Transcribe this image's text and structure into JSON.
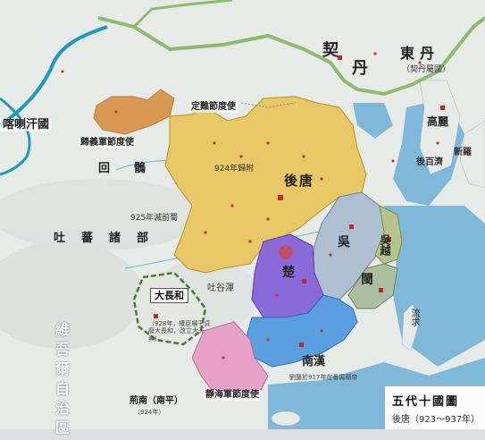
{
  "map": {
    "regions": {
      "later_tang": "後唐",
      "wu": "吳",
      "wuyue": "吳越",
      "min": "閩",
      "chu": "楚",
      "southern_han": "南漢",
      "dachanghe": "大長和",
      "khitan_a": "契",
      "khitan_b": "丹",
      "dongdan": "東丹",
      "goryeo": "高麗",
      "hou_baekje": "後百濟",
      "silla": "新羅",
      "uyghur_a": "回",
      "uyghur_b": "鶻",
      "tubo": "吐蕃諸部",
      "karakhanid": "喀喇汗國",
      "jingnan": "荊南（南平）"
    },
    "jiedushi": {
      "guiyi": "歸義軍節度使",
      "dingnan": "定難節度使",
      "jinghai": "靜海軍節度使"
    },
    "annotations": {
      "y924": "924年歸附",
      "y925": "925年滅前蜀",
      "han917": "劉龑於917年在番禺稱帝",
      "dachanghe_note": "（928年，權臣楊干貞廢大長和，改立大天興）",
      "dongdan_sub": "（契丹屬國）",
      "jingnan_note": "（924年）"
    },
    "water": {
      "ryukyu": "流求",
      "tunnel": "吐谷渾"
    },
    "map_edge_text": "維吾爾自治區"
  },
  "legend": {
    "title": "五代十國圖",
    "period": "後唐（923～937年）"
  },
  "colors": {
    "later_tang": "#e8c766",
    "wu": "#aebfcf",
    "wuyue": "#b4c48b",
    "min": "#a9bfa0",
    "chu": "#8a6ad8",
    "southern_han": "#5aa0e0",
    "guiyi": "#d98a3a",
    "jinghai": "#e6a2c9",
    "khitan_border": "#7fb35b",
    "land": "#e7ebe8",
    "water": "#7fb8d9",
    "river": "#1f9ab8"
  }
}
